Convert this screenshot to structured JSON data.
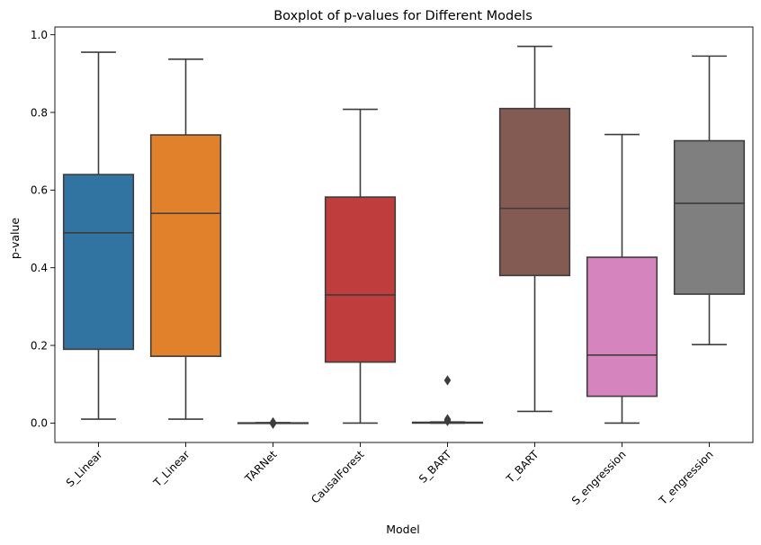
{
  "chart_data": {
    "type": "box",
    "title": "Boxplot of p-values for Different Models",
    "xlabel": "Model",
    "ylabel": "p-value",
    "ylim": [
      -0.05,
      1.02
    ],
    "yticks": [
      "0.0",
      "0.2",
      "0.4",
      "0.6",
      "0.8",
      "1.0"
    ],
    "ytick_values": [
      0.0,
      0.2,
      0.4,
      0.6,
      0.8,
      1.0
    ],
    "grid": false,
    "categories": [
      "S_Linear",
      "T_Linear",
      "TARNet",
      "CausalForest",
      "S_BART",
      "T_BART",
      "S_engression",
      "T_engression"
    ],
    "boxes": [
      {
        "name": "S_Linear",
        "whislo": 0.01,
        "q1": 0.19,
        "med": 0.49,
        "q3": 0.64,
        "whishi": 0.955,
        "fliers": [],
        "color": "#3274a1"
      },
      {
        "name": "T_Linear",
        "whislo": 0.01,
        "q1": 0.172,
        "med": 0.54,
        "q3": 0.742,
        "whishi": 0.937,
        "fliers": [],
        "color": "#e1812c"
      },
      {
        "name": "TARNet",
        "whislo": 0.0,
        "q1": 0.0,
        "med": 0.0,
        "q3": 0.0005,
        "whishi": 0.001,
        "fliers": [
          -0.002,
          0.0,
          0.002
        ],
        "color": "#3a923a"
      },
      {
        "name": "CausalForest",
        "whislo": 0.0,
        "q1": 0.157,
        "med": 0.33,
        "q3": 0.582,
        "whishi": 0.808,
        "fliers": [],
        "color": "#c03d3e"
      },
      {
        "name": "S_BART",
        "whislo": 0.0,
        "q1": 0.0,
        "med": 0.0005,
        "q3": 0.002,
        "whishi": 0.003,
        "fliers": [
          0.11,
          0.01,
          0.008,
          0.005
        ],
        "color": "#2ca02c"
      },
      {
        "name": "T_BART",
        "whislo": 0.03,
        "q1": 0.38,
        "med": 0.553,
        "q3": 0.81,
        "whishi": 0.97,
        "fliers": [],
        "color": "#845b53"
      },
      {
        "name": "S_engression",
        "whislo": 0.0,
        "q1": 0.069,
        "med": 0.175,
        "q3": 0.427,
        "whishi": 0.743,
        "fliers": [],
        "color": "#d684bd"
      },
      {
        "name": "T_engression",
        "whislo": 0.202,
        "q1": 0.332,
        "med": 0.566,
        "q3": 0.727,
        "whishi": 0.945,
        "fliers": [],
        "color": "#7f7f7f"
      }
    ],
    "line_color": "#3d3d3d"
  }
}
